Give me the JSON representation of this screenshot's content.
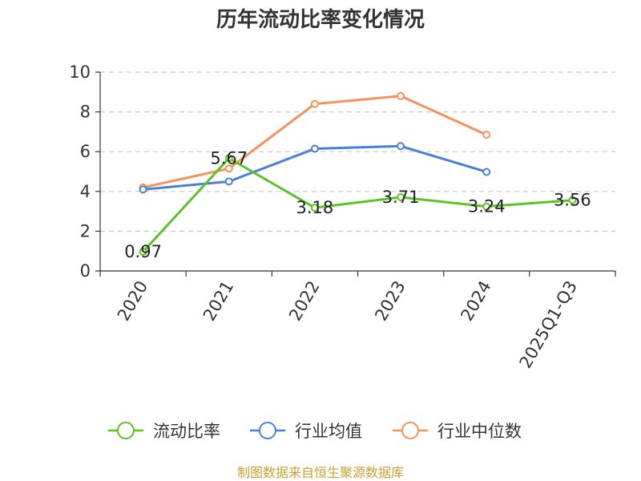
{
  "chart_data": {
    "type": "line",
    "title": "历年流动比率变化情况",
    "categories": [
      "2020",
      "2021",
      "2022",
      "2023",
      "2024",
      "2025Q1-Q3"
    ],
    "ylim": [
      0,
      10
    ],
    "yticks": [
      0,
      2,
      4,
      6,
      8,
      10
    ],
    "grid": true,
    "legend_position": "bottom",
    "series": [
      {
        "name": "流动比率",
        "color": "#5bc424",
        "values": [
          0.97,
          5.67,
          3.18,
          3.71,
          3.24,
          3.56
        ],
        "labels": [
          "0.97",
          "5.67",
          "3.18",
          "3.71",
          "3.24",
          "3.56"
        ]
      },
      {
        "name": "行业均值",
        "color": "#4a7fd8",
        "values": [
          4.1,
          4.5,
          6.15,
          6.28,
          4.98,
          null
        ]
      },
      {
        "name": "行业中位数",
        "color": "#f5915a",
        "values": [
          4.2,
          5.15,
          8.4,
          8.8,
          6.85,
          null
        ]
      }
    ]
  },
  "source_text": "制图数据来自恒生聚源数据库"
}
